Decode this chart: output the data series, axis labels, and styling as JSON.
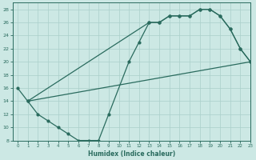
{
  "line1_x": [
    0,
    1,
    2,
    3,
    4,
    5,
    6,
    7,
    8,
    9,
    11,
    12,
    13,
    14,
    15,
    16,
    17,
    18,
    19,
    20,
    21,
    22,
    23
  ],
  "line1_y": [
    16,
    14,
    12,
    11,
    10,
    9,
    8,
    8,
    8,
    12,
    20,
    23,
    26,
    26,
    27,
    27,
    27,
    28,
    28,
    27,
    25,
    22,
    20
  ],
  "line2_x": [
    1,
    13,
    14,
    15,
    16,
    17,
    18,
    19,
    20,
    21,
    22,
    23
  ],
  "line2_y": [
    14,
    26,
    26,
    27,
    27,
    27,
    28,
    28,
    27,
    25,
    22,
    20
  ],
  "line3_x": [
    1,
    23
  ],
  "line3_y": [
    14,
    20
  ],
  "line_color": "#2a6b5e",
  "bg_color": "#cce8e4",
  "grid_color": "#aacfca",
  "xlabel": "Humidex (Indice chaleur)",
  "ylim": [
    8,
    29
  ],
  "xlim": [
    -0.5,
    23
  ],
  "yticks": [
    8,
    10,
    12,
    14,
    16,
    18,
    20,
    22,
    24,
    26,
    28
  ],
  "xticks": [
    0,
    1,
    2,
    3,
    4,
    5,
    6,
    7,
    8,
    9,
    10,
    11,
    12,
    13,
    14,
    15,
    16,
    17,
    18,
    19,
    20,
    21,
    22,
    23
  ]
}
